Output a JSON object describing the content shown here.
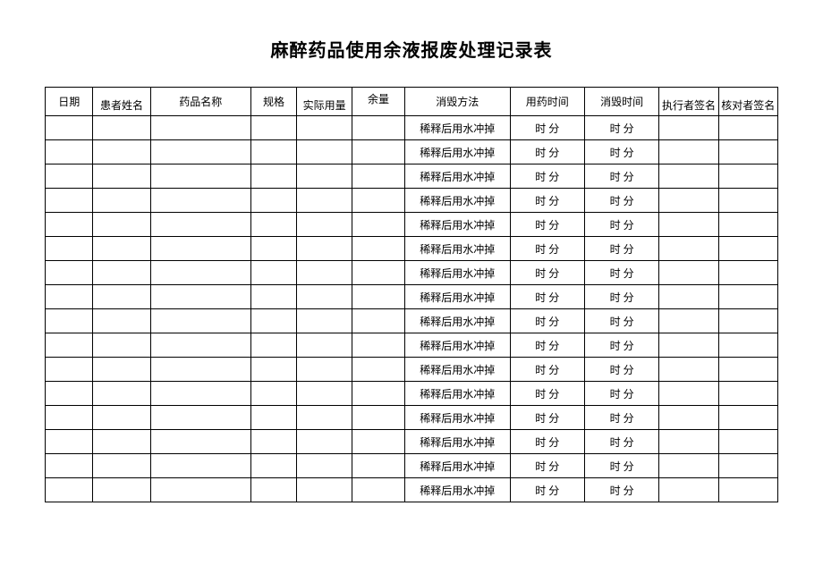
{
  "title": "麻醉药品使用余液报废处理记录表",
  "columns": [
    {
      "label": "日期",
      "class": "col-date",
      "valign": ""
    },
    {
      "label": "患者姓名",
      "class": "col-patient",
      "valign": "va-bottom"
    },
    {
      "label": "药品名称",
      "class": "col-drug",
      "valign": ""
    },
    {
      "label": "规格",
      "class": "col-spec",
      "valign": ""
    },
    {
      "label": "实际用量",
      "class": "col-actual",
      "valign": "va-bottom"
    },
    {
      "label": "余量",
      "class": "col-remain",
      "valign": "va-top"
    },
    {
      "label": "消毁方法",
      "class": "col-method",
      "valign": ""
    },
    {
      "label": "用药时间",
      "class": "col-usetime",
      "valign": ""
    },
    {
      "label": "消毁时间",
      "class": "col-destroytime",
      "valign": ""
    },
    {
      "label": "执行者签名",
      "class": "col-exec",
      "valign": "va-bottom"
    },
    {
      "label": "核对者签名",
      "class": "col-check",
      "valign": "va-bottom"
    }
  ],
  "rows": [
    {
      "date": "",
      "patient": "",
      "drug": "",
      "spec": "",
      "actual": "",
      "remain": "",
      "method": "稀释后用水冲掉",
      "usetime": "时 分",
      "destroytime": "时 分",
      "exec": "",
      "check": ""
    },
    {
      "date": "",
      "patient": "",
      "drug": "",
      "spec": "",
      "actual": "",
      "remain": "",
      "method": "稀释后用水冲掉",
      "usetime": "时 分",
      "destroytime": "时 分",
      "exec": "",
      "check": ""
    },
    {
      "date": "",
      "patient": "",
      "drug": "",
      "spec": "",
      "actual": "",
      "remain": "",
      "method": "稀释后用水冲掉",
      "usetime": "时 分",
      "destroytime": "时 分",
      "exec": "",
      "check": ""
    },
    {
      "date": "",
      "patient": "",
      "drug": "",
      "spec": "",
      "actual": "",
      "remain": "",
      "method": "稀释后用水冲掉",
      "usetime": "时 分",
      "destroytime": "时 分",
      "exec": "",
      "check": ""
    },
    {
      "date": "",
      "patient": "",
      "drug": "",
      "spec": "",
      "actual": "",
      "remain": "",
      "method": "稀释后用水冲掉",
      "usetime": "时 分",
      "destroytime": "时 分",
      "exec": "",
      "check": ""
    },
    {
      "date": "",
      "patient": "",
      "drug": "",
      "spec": "",
      "actual": "",
      "remain": "",
      "method": "稀释后用水冲掉",
      "usetime": "时 分",
      "destroytime": "时 分",
      "exec": "",
      "check": ""
    },
    {
      "date": "",
      "patient": "",
      "drug": "",
      "spec": "",
      "actual": "",
      "remain": "",
      "method": "稀释后用水冲掉",
      "usetime": "时 分",
      "destroytime": "时 分",
      "exec": "",
      "check": ""
    },
    {
      "date": "",
      "patient": "",
      "drug": "",
      "spec": "",
      "actual": "",
      "remain": "",
      "method": "稀释后用水冲掉",
      "usetime": "时 分",
      "destroytime": "时 分",
      "exec": "",
      "check": ""
    },
    {
      "date": "",
      "patient": "",
      "drug": "",
      "spec": "",
      "actual": "",
      "remain": "",
      "method": "稀释后用水冲掉",
      "usetime": "时 分",
      "destroytime": "时 分",
      "exec": "",
      "check": ""
    },
    {
      "date": "",
      "patient": "",
      "drug": "",
      "spec": "",
      "actual": "",
      "remain": "",
      "method": "稀释后用水冲掉",
      "usetime": "时 分",
      "destroytime": "时 分",
      "exec": "",
      "check": ""
    },
    {
      "date": "",
      "patient": "",
      "drug": "",
      "spec": "",
      "actual": "",
      "remain": "",
      "method": "稀释后用水冲掉",
      "usetime": "时 分",
      "destroytime": "时 分",
      "exec": "",
      "check": ""
    },
    {
      "date": "",
      "patient": "",
      "drug": "",
      "spec": "",
      "actual": "",
      "remain": "",
      "method": "稀释后用水冲掉",
      "usetime": "时 分",
      "destroytime": "时 分",
      "exec": "",
      "check": ""
    },
    {
      "date": "",
      "patient": "",
      "drug": "",
      "spec": "",
      "actual": "",
      "remain": "",
      "method": "稀释后用水冲掉",
      "usetime": "时 分",
      "destroytime": "时 分",
      "exec": "",
      "check": ""
    },
    {
      "date": "",
      "patient": "",
      "drug": "",
      "spec": "",
      "actual": "",
      "remain": "",
      "method": "稀释后用水冲掉",
      "usetime": "时 分",
      "destroytime": "时 分",
      "exec": "",
      "check": ""
    },
    {
      "date": "",
      "patient": "",
      "drug": "",
      "spec": "",
      "actual": "",
      "remain": "",
      "method": "稀释后用水冲掉",
      "usetime": "时 分",
      "destroytime": "时 分",
      "exec": "",
      "check": ""
    },
    {
      "date": "",
      "patient": "",
      "drug": "",
      "spec": "",
      "actual": "",
      "remain": "",
      "method": "稀释后用水冲掉",
      "usetime": "时 分",
      "destroytime": "时 分",
      "exec": "",
      "check": ""
    }
  ]
}
